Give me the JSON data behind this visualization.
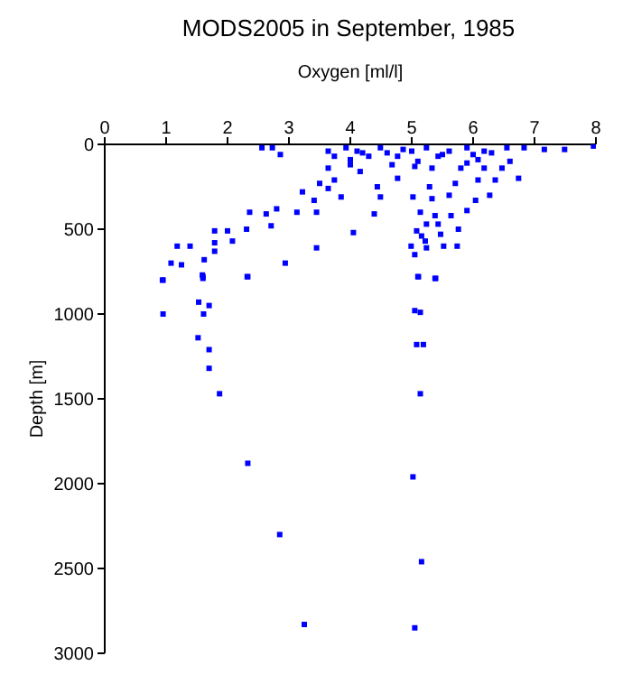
{
  "chart_data": {
    "type": "scatter",
    "title": "MODS2005 in September, 1985",
    "xlabel": "Oxygen [ml/l]",
    "ylabel": "Depth [m]",
    "xlim": [
      0,
      8
    ],
    "xticks": [
      0,
      1,
      2,
      3,
      4,
      5,
      6,
      7,
      8
    ],
    "ylim": [
      3000,
      0
    ],
    "yticks": [
      0,
      500,
      1000,
      1500,
      2000,
      2500,
      3000
    ],
    "grid": false,
    "marker": "square",
    "series": [
      {
        "color": "#0000ff",
        "x": [
          2.56,
          2.73,
          2.86,
          3.64,
          3.93,
          4.11,
          4.49,
          4.86,
          5.24,
          5.61,
          5.9,
          6.18,
          6.55,
          6.83,
          7.16,
          7.49,
          7.96,
          3.74,
          4.3,
          4.77,
          5.43,
          6.08,
          3.64,
          4.0,
          4.16,
          4.68,
          5.05,
          5.33,
          5.8,
          6.18,
          6.47,
          3.74,
          4.44,
          4.77,
          5.29,
          5.71,
          6.08,
          6.36,
          6.74,
          3.5,
          3.22,
          3.64,
          3.85,
          4.49,
          5.02,
          5.33,
          5.61,
          6.04,
          6.27,
          3.41,
          2.8,
          2.36,
          2.63,
          3.13,
          3.45,
          4.39,
          5.14,
          5.38,
          5.64,
          5.9,
          2.71,
          5.24,
          5.43,
          1.79,
          2.0,
          2.31,
          4.05,
          5.08,
          5.47,
          5.76,
          5.16,
          2.08,
          1.79,
          5.22,
          1.18,
          1.39,
          3.45,
          4.99,
          5.24,
          5.52,
          5.74,
          1.79,
          5.05,
          1.08,
          1.25,
          1.62,
          2.94,
          1.6,
          2.33,
          0.94,
          5.11,
          5.38,
          0.95,
          1.59,
          1.6,
          2.32,
          5.1,
          5.39,
          1.53,
          1.7,
          0.95,
          1.61,
          5.05,
          5.14,
          1.52,
          1.7,
          5.08,
          5.19,
          1.7,
          1.87,
          5.14,
          2.33,
          5.02,
          2.85,
          5.16,
          3.25,
          5.05,
          4.2,
          4.6,
          5.0,
          5.5,
          6.0,
          6.3,
          4.0,
          5.1,
          5.9,
          6.6
        ],
        "values": [
          20,
          20,
          60,
          40,
          20,
          40,
          20,
          30,
          20,
          40,
          20,
          40,
          20,
          20,
          30,
          30,
          10,
          70,
          70,
          70,
          70,
          90,
          140,
          120,
          160,
          120,
          130,
          140,
          140,
          140,
          140,
          210,
          250,
          200,
          250,
          230,
          210,
          210,
          200,
          230,
          280,
          260,
          310,
          310,
          310,
          320,
          300,
          330,
          300,
          330,
          380,
          400,
          410,
          400,
          400,
          410,
          400,
          420,
          420,
          390,
          480,
          470,
          470,
          510,
          510,
          500,
          520,
          510,
          530,
          500,
          540,
          570,
          580,
          570,
          600,
          600,
          610,
          600,
          610,
          600,
          600,
          630,
          650,
          700,
          710,
          680,
          700,
          780,
          780,
          800,
          780,
          790,
          800,
          770,
          790,
          780,
          780,
          790,
          930,
          950,
          1000,
          1000,
          980,
          990,
          1140,
          1210,
          1180,
          1180,
          1320,
          1470,
          1470,
          1880,
          1960,
          2300,
          2460,
          2830,
          2850,
          50,
          50,
          40,
          60,
          60,
          50,
          90,
          100,
          110,
          100
        ]
      }
    ]
  }
}
